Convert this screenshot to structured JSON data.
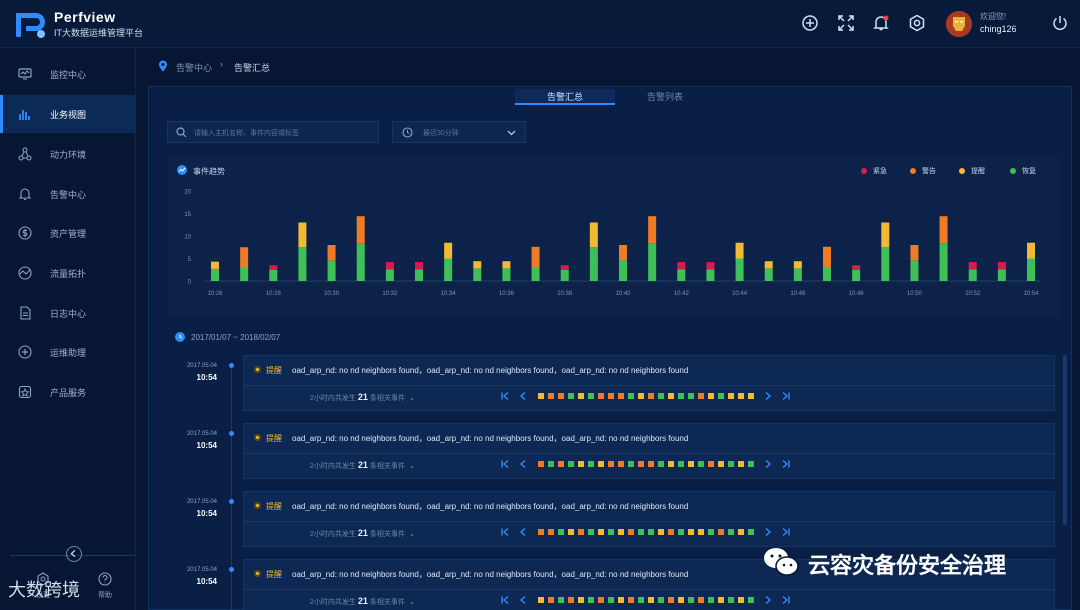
{
  "app": {
    "name": "Perfview",
    "subtitle": "IT大数据运维管理平台"
  },
  "user": {
    "welcome": "欢迎您!",
    "name": "ching126"
  },
  "topbar_icons": [
    "add-circle-icon",
    "fullscreen-icon",
    "bell-icon",
    "settings-hex-icon",
    "power-icon"
  ],
  "sidebar": {
    "items": [
      {
        "label": "监控中心",
        "icon": "monitor-icon"
      },
      {
        "label": "业务视图",
        "icon": "bar-chart-icon",
        "active": true
      },
      {
        "label": "动力环境",
        "icon": "nodes-icon"
      },
      {
        "label": "告警中心",
        "icon": "bell-icon"
      },
      {
        "label": "资产管理",
        "icon": "dollar-icon"
      },
      {
        "label": "流量拓扑",
        "icon": "topology-icon"
      },
      {
        "label": "日志中心",
        "icon": "document-icon"
      },
      {
        "label": "运维助理",
        "icon": "assistant-icon"
      },
      {
        "label": "产品服务",
        "icon": "service-icon"
      }
    ],
    "bottom": {
      "settings": "设置",
      "help": "帮助"
    }
  },
  "breadcrumb": {
    "parent": "告警中心",
    "current": "告警汇总"
  },
  "tabs": [
    {
      "label": "告警汇总",
      "active": true
    },
    {
      "label": "告警列表",
      "active": false
    }
  ],
  "search": {
    "placeholder": "请输入主机名称、事件内容或标签"
  },
  "time_filter": {
    "value": "最近30分钟"
  },
  "chart": {
    "title": "事件趋势",
    "legend": [
      {
        "name": "紧急",
        "color": "#d81b4c"
      },
      {
        "name": "警告",
        "color": "#f07b27"
      },
      {
        "name": "提醒",
        "color": "#f2b933"
      },
      {
        "name": "恢复",
        "color": "#3fbf58"
      }
    ]
  },
  "chart_data": {
    "type": "bar",
    "stacked": true,
    "title": "事件趋势",
    "ylim": [
      0,
      20
    ],
    "yticks": [
      0,
      5,
      10,
      15,
      20
    ],
    "xtick_labels": [
      "10:26",
      "10:28",
      "10:30",
      "10:32",
      "10:34",
      "10:36",
      "10:38",
      "10:40",
      "10:42",
      "10:44",
      "10:46",
      "10:48",
      "10:50",
      "10:52",
      "10:54"
    ],
    "bars": [
      {
        "recover": 2.7,
        "level": "remind",
        "top": 1.6
      },
      {
        "recover": 3,
        "level": "warning",
        "top": 4.5
      },
      {
        "recover": 2.5,
        "level": "urgent",
        "top": 1
      },
      {
        "recover": 7.5,
        "level": "remind",
        "top": 5.5
      },
      {
        "recover": 4.6,
        "level": "warning",
        "top": 3.4
      },
      {
        "recover": 8.4,
        "level": "warning",
        "top": 6
      },
      {
        "recover": 2.6,
        "level": "urgent",
        "top": 1.6
      },
      {
        "recover": 2.6,
        "level": "urgent",
        "top": 1.6
      },
      {
        "recover": 5,
        "level": "remind",
        "top": 3.5
      },
      {
        "recover": 2.8,
        "level": "remind",
        "top": 1.6
      },
      {
        "recover": 2.8,
        "level": "remind",
        "top": 1.6
      },
      {
        "recover": 3,
        "level": "warning",
        "top": 4.6
      },
      {
        "recover": 2.5,
        "level": "urgent",
        "top": 1
      },
      {
        "recover": 7.5,
        "level": "remind",
        "top": 5.5
      },
      {
        "recover": 4.6,
        "level": "warning",
        "top": 3.4
      },
      {
        "recover": 8.4,
        "level": "warning",
        "top": 6
      },
      {
        "recover": 2.6,
        "level": "urgent",
        "top": 1.6
      },
      {
        "recover": 2.6,
        "level": "urgent",
        "top": 1.6
      },
      {
        "recover": 5,
        "level": "remind",
        "top": 3.5
      },
      {
        "recover": 2.8,
        "level": "remind",
        "top": 1.6
      },
      {
        "recover": 2.8,
        "level": "remind",
        "top": 1.6
      },
      {
        "recover": 3,
        "level": "warning",
        "top": 4.6
      },
      {
        "recover": 2.5,
        "level": "urgent",
        "top": 1
      },
      {
        "recover": 7.5,
        "level": "remind",
        "top": 5.5
      },
      {
        "recover": 4.6,
        "level": "warning",
        "top": 3.4
      },
      {
        "recover": 8.4,
        "level": "warning",
        "top": 6
      },
      {
        "recover": 2.6,
        "level": "urgent",
        "top": 1.6
      },
      {
        "recover": 2.6,
        "level": "urgent",
        "top": 1.6
      },
      {
        "recover": 5,
        "level": "remind",
        "top": 3.5
      }
    ]
  },
  "date_range": "2017/01/07 ~ 2018/02/07",
  "events": [
    {
      "date": "2017.05.04",
      "time": "10:54",
      "level": "提醒",
      "message": "oad_arp_nd: no nd neighbors found，oad_arp_nd: no nd neighbors found，oad_arp_nd: no nd neighbors found",
      "count_prefix": "2小时内共发生",
      "count": "21",
      "count_suffix": "条相关事件",
      "squares": [
        "#f2b933",
        "#f07b27",
        "#f07b27",
        "#3fbf58",
        "#f2b933",
        "#3fbf58",
        "#f07b27",
        "#f07b27",
        "#f07b27",
        "#3fbf58",
        "#f2b933",
        "#f07b27",
        "#3fbf58",
        "#f2b933",
        "#3fbf58",
        "#3fbf58",
        "#f07b27",
        "#f2b933",
        "#3fbf58",
        "#f2b933",
        "#f2b933",
        "#f2b933"
      ]
    },
    {
      "date": "2017.05.04",
      "time": "10:54",
      "level": "提醒",
      "message": "oad_arp_nd: no nd neighbors found，oad_arp_nd: no nd neighbors found，oad_arp_nd: no nd neighbors found",
      "count_prefix": "2小时内共发生",
      "count": "21",
      "count_suffix": "条相关事件",
      "squares": [
        "#f07b27",
        "#3fbf58",
        "#f07b27",
        "#3fbf58",
        "#f2b933",
        "#3fbf58",
        "#f2b933",
        "#f07b27",
        "#f07b27",
        "#3fbf58",
        "#f07b27",
        "#f07b27",
        "#3fbf58",
        "#f2b933",
        "#3fbf58",
        "#f2b933",
        "#3fbf58",
        "#f07b27",
        "#f2b933",
        "#3fbf58",
        "#f2b933",
        "#3fbf58"
      ]
    },
    {
      "date": "2017.05.04",
      "time": "10:54",
      "level": "提醒",
      "message": "oad_arp_nd: no nd neighbors found，oad_arp_nd: no nd neighbors found，oad_arp_nd: no nd neighbors found",
      "count_prefix": "2小时内共发生",
      "count": "21",
      "count_suffix": "条相关事件",
      "squares": [
        "#f07b27",
        "#f07b27",
        "#3fbf58",
        "#f2b933",
        "#f07b27",
        "#3fbf58",
        "#f2b933",
        "#3fbf58",
        "#f2b933",
        "#f07b27",
        "#3fbf58",
        "#3fbf58",
        "#f2b933",
        "#f07b27",
        "#3fbf58",
        "#f2b933",
        "#f2b933",
        "#3fbf58",
        "#f07b27",
        "#3fbf58",
        "#f2b933",
        "#3fbf58"
      ]
    },
    {
      "date": "2017.05.04",
      "time": "10:54",
      "level": "提醒",
      "message": "oad_arp_nd: no nd neighbors found，oad_arp_nd: no nd neighbors found，oad_arp_nd: no nd neighbors found",
      "count_prefix": "2小时内共发生",
      "count": "21",
      "count_suffix": "条相关事件",
      "squares": [
        "#f2b933",
        "#f07b27",
        "#3fbf58",
        "#f07b27",
        "#f2b933",
        "#3fbf58",
        "#f07b27",
        "#3fbf58",
        "#f2b933",
        "#f07b27",
        "#3fbf58",
        "#f2b933",
        "#3fbf58",
        "#f07b27",
        "#f2b933",
        "#3fbf58",
        "#f07b27",
        "#3fbf58",
        "#f2b933",
        "#3fbf58",
        "#f2b933",
        "#3fbf58"
      ]
    }
  ],
  "watermarks": {
    "wechat": "云容灾备份安全治理",
    "corner": "大数跨境"
  }
}
